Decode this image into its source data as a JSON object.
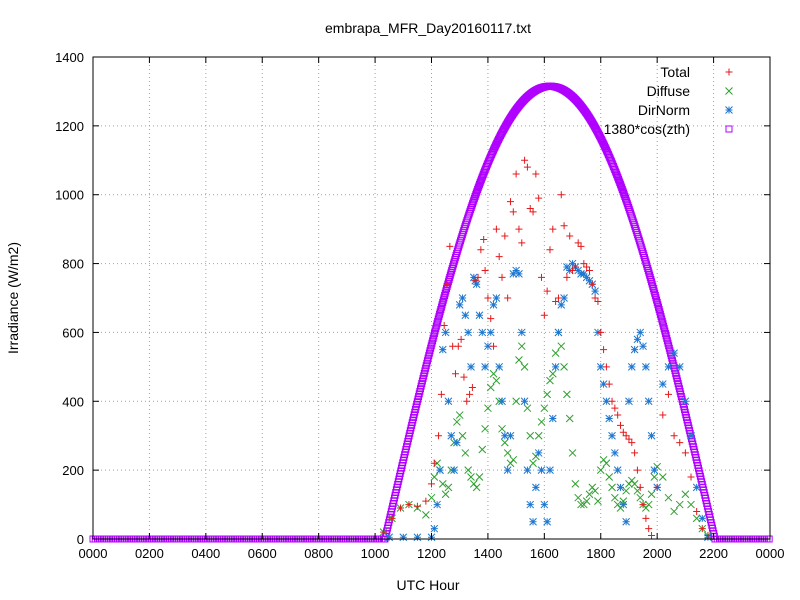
{
  "chart_data": {
    "type": "scatter",
    "title": "embrapa_MFR_Day20160117.txt",
    "xlabel": "UTC Hour",
    "ylabel": "Irradiance (W/m2)",
    "xlim": [
      0,
      24
    ],
    "ylim": [
      0,
      1400
    ],
    "x_ticks": [
      {
        "value": 0,
        "label": "0000"
      },
      {
        "value": 2,
        "label": "0200"
      },
      {
        "value": 4,
        "label": "0400"
      },
      {
        "value": 6,
        "label": "0600"
      },
      {
        "value": 8,
        "label": "0800"
      },
      {
        "value": 10,
        "label": "1000"
      },
      {
        "value": 12,
        "label": "1200"
      },
      {
        "value": 14,
        "label": "1400"
      },
      {
        "value": 16,
        "label": "1600"
      },
      {
        "value": 18,
        "label": "1800"
      },
      {
        "value": 20,
        "label": "2000"
      },
      {
        "value": 22,
        "label": "2200"
      },
      {
        "value": 24,
        "label": "0000"
      }
    ],
    "y_ticks": [
      0,
      200,
      400,
      600,
      800,
      1000,
      1200,
      1400
    ],
    "grid": true,
    "legend_position": "top-right",
    "series": [
      {
        "name": "Total",
        "marker": "plus",
        "color": "#e41a1c",
        "points": [
          [
            10.3,
            20
          ],
          [
            10.6,
            60
          ],
          [
            10.9,
            90
          ],
          [
            11.2,
            100
          ],
          [
            11.5,
            95
          ],
          [
            11.8,
            110
          ],
          [
            12.0,
            160
          ],
          [
            12.1,
            220
          ],
          [
            12.25,
            300
          ],
          [
            12.35,
            420
          ],
          [
            12.45,
            620
          ],
          [
            12.55,
            740
          ],
          [
            12.65,
            850
          ],
          [
            12.75,
            560
          ],
          [
            12.85,
            480
          ],
          [
            12.95,
            560
          ],
          [
            13.05,
            580
          ],
          [
            13.15,
            470
          ],
          [
            13.25,
            400
          ],
          [
            13.35,
            420
          ],
          [
            13.45,
            440
          ],
          [
            13.55,
            750
          ],
          [
            13.65,
            760
          ],
          [
            13.75,
            840
          ],
          [
            13.85,
            870
          ],
          [
            13.9,
            780
          ],
          [
            14.0,
            700
          ],
          [
            14.1,
            640
          ],
          [
            14.2,
            560
          ],
          [
            14.3,
            900
          ],
          [
            14.4,
            820
          ],
          [
            14.5,
            760
          ],
          [
            14.6,
            880
          ],
          [
            14.7,
            700
          ],
          [
            14.8,
            980
          ],
          [
            14.9,
            950
          ],
          [
            15.0,
            1060
          ],
          [
            15.1,
            900
          ],
          [
            15.2,
            860
          ],
          [
            15.3,
            1100
          ],
          [
            15.4,
            1080
          ],
          [
            15.5,
            960
          ],
          [
            15.6,
            950
          ],
          [
            15.7,
            1060
          ],
          [
            15.8,
            990
          ],
          [
            15.9,
            760
          ],
          [
            16.0,
            650
          ],
          [
            16.1,
            720
          ],
          [
            16.2,
            840
          ],
          [
            16.3,
            900
          ],
          [
            16.4,
            690
          ],
          [
            16.5,
            700
          ],
          [
            16.6,
            1000
          ],
          [
            16.7,
            910
          ],
          [
            16.8,
            760
          ],
          [
            16.9,
            880
          ],
          [
            17.0,
            780
          ],
          [
            17.1,
            790
          ],
          [
            17.2,
            860
          ],
          [
            17.3,
            850
          ],
          [
            17.4,
            800
          ],
          [
            17.5,
            790
          ],
          [
            17.6,
            780
          ],
          [
            17.7,
            740
          ],
          [
            17.8,
            700
          ],
          [
            17.9,
            690
          ],
          [
            18.0,
            600
          ],
          [
            18.1,
            550
          ],
          [
            18.2,
            500
          ],
          [
            18.3,
            450
          ],
          [
            18.4,
            400
          ],
          [
            18.5,
            380
          ],
          [
            18.6,
            360
          ],
          [
            18.7,
            330
          ],
          [
            18.8,
            310
          ],
          [
            18.9,
            300
          ],
          [
            19.0,
            290
          ],
          [
            19.1,
            280
          ],
          [
            19.2,
            250
          ],
          [
            19.3,
            200
          ],
          [
            19.4,
            150
          ],
          [
            19.5,
            100
          ],
          [
            19.6,
            60
          ],
          [
            19.7,
            30
          ],
          [
            19.8,
            10
          ],
          [
            20.0,
            150
          ],
          [
            20.2,
            360
          ],
          [
            20.4,
            420
          ],
          [
            20.6,
            300
          ],
          [
            20.8,
            280
          ],
          [
            21.0,
            250
          ],
          [
            21.2,
            180
          ],
          [
            21.4,
            80
          ],
          [
            21.6,
            30
          ],
          [
            21.8,
            10
          ]
        ]
      },
      {
        "name": "Diffuse",
        "marker": "cross",
        "color": "#2ca02c",
        "points": [
          [
            10.3,
            20
          ],
          [
            10.6,
            60
          ],
          [
            10.9,
            90
          ],
          [
            11.2,
            100
          ],
          [
            11.5,
            90
          ],
          [
            11.8,
            70
          ],
          [
            12.0,
            120
          ],
          [
            12.1,
            180
          ],
          [
            12.2,
            220
          ],
          [
            12.3,
            200
          ],
          [
            12.4,
            160
          ],
          [
            12.5,
            130
          ],
          [
            12.6,
            150
          ],
          [
            12.7,
            200
          ],
          [
            12.8,
            280
          ],
          [
            12.9,
            340
          ],
          [
            13.0,
            360
          ],
          [
            13.1,
            300
          ],
          [
            13.2,
            250
          ],
          [
            13.3,
            200
          ],
          [
            13.4,
            180
          ],
          [
            13.5,
            160
          ],
          [
            13.6,
            150
          ],
          [
            13.7,
            180
          ],
          [
            13.8,
            260
          ],
          [
            13.9,
            320
          ],
          [
            14.0,
            380
          ],
          [
            14.1,
            440
          ],
          [
            14.2,
            480
          ],
          [
            14.3,
            460
          ],
          [
            14.4,
            400
          ],
          [
            14.5,
            320
          ],
          [
            14.6,
            280
          ],
          [
            14.7,
            250
          ],
          [
            14.8,
            220
          ],
          [
            14.9,
            230
          ],
          [
            15.0,
            400
          ],
          [
            15.1,
            520
          ],
          [
            15.2,
            560
          ],
          [
            15.3,
            500
          ],
          [
            15.4,
            380
          ],
          [
            15.5,
            300
          ],
          [
            15.6,
            220
          ],
          [
            15.7,
            240
          ],
          [
            15.8,
            300
          ],
          [
            15.9,
            340
          ],
          [
            16.0,
            380
          ],
          [
            16.1,
            420
          ],
          [
            16.2,
            460
          ],
          [
            16.3,
            480
          ],
          [
            16.4,
            540
          ],
          [
            16.5,
            600
          ],
          [
            16.6,
            560
          ],
          [
            16.7,
            500
          ],
          [
            16.8,
            420
          ],
          [
            16.9,
            350
          ],
          [
            17.0,
            250
          ],
          [
            17.1,
            160
          ],
          [
            17.2,
            120
          ],
          [
            17.3,
            100
          ],
          [
            17.4,
            100
          ],
          [
            17.5,
            110
          ],
          [
            17.6,
            130
          ],
          [
            17.7,
            150
          ],
          [
            17.8,
            140
          ],
          [
            17.9,
            110
          ],
          [
            18.0,
            200
          ],
          [
            18.1,
            230
          ],
          [
            18.2,
            220
          ],
          [
            18.3,
            180
          ],
          [
            18.4,
            150
          ],
          [
            18.5,
            120
          ],
          [
            18.6,
            100
          ],
          [
            18.7,
            90
          ],
          [
            18.8,
            110
          ],
          [
            18.9,
            140
          ],
          [
            19.0,
            160
          ],
          [
            19.1,
            170
          ],
          [
            19.2,
            160
          ],
          [
            19.3,
            140
          ],
          [
            19.4,
            120
          ],
          [
            19.5,
            100
          ],
          [
            19.6,
            90
          ],
          [
            19.7,
            100
          ],
          [
            19.8,
            130
          ],
          [
            19.9,
            180
          ],
          [
            20.0,
            210
          ],
          [
            20.2,
            180
          ],
          [
            20.4,
            120
          ],
          [
            20.6,
            80
          ],
          [
            20.8,
            100
          ],
          [
            21.0,
            130
          ],
          [
            21.2,
            100
          ],
          [
            21.4,
            60
          ],
          [
            21.6,
            30
          ],
          [
            21.8,
            10
          ]
        ]
      },
      {
        "name": "DirNorm",
        "marker": "star",
        "color": "#1f77d0",
        "points": [
          [
            10.5,
            5
          ],
          [
            11.0,
            5
          ],
          [
            11.5,
            5
          ],
          [
            12.0,
            5
          ],
          [
            12.1,
            30
          ],
          [
            12.2,
            100
          ],
          [
            12.3,
            200
          ],
          [
            12.4,
            550
          ],
          [
            12.5,
            600
          ],
          [
            12.6,
            400
          ],
          [
            12.7,
            300
          ],
          [
            12.8,
            200
          ],
          [
            12.9,
            280
          ],
          [
            13.0,
            680
          ],
          [
            13.1,
            700
          ],
          [
            13.2,
            650
          ],
          [
            13.3,
            600
          ],
          [
            13.4,
            500
          ],
          [
            13.5,
            760
          ],
          [
            13.55,
            750
          ],
          [
            13.6,
            740
          ],
          [
            13.7,
            650
          ],
          [
            13.8,
            600
          ],
          [
            13.9,
            500
          ],
          [
            14.0,
            560
          ],
          [
            14.1,
            600
          ],
          [
            14.2,
            680
          ],
          [
            14.3,
            700
          ],
          [
            14.4,
            500
          ],
          [
            14.5,
            400
          ],
          [
            14.6,
            300
          ],
          [
            14.7,
            200
          ],
          [
            14.8,
            300
          ],
          [
            14.9,
            770
          ],
          [
            15.0,
            780
          ],
          [
            15.1,
            770
          ],
          [
            15.2,
            600
          ],
          [
            15.3,
            400
          ],
          [
            15.4,
            200
          ],
          [
            15.5,
            100
          ],
          [
            15.6,
            50
          ],
          [
            15.7,
            150
          ],
          [
            15.8,
            250
          ],
          [
            15.9,
            200
          ],
          [
            16.0,
            100
          ],
          [
            16.1,
            50
          ],
          [
            16.2,
            200
          ],
          [
            16.3,
            350
          ],
          [
            16.4,
            500
          ],
          [
            16.5,
            600
          ],
          [
            16.6,
            680
          ],
          [
            16.7,
            700
          ],
          [
            16.8,
            790
          ],
          [
            16.9,
            780
          ],
          [
            17.0,
            800
          ],
          [
            17.1,
            790
          ],
          [
            17.2,
            780
          ],
          [
            17.3,
            770
          ],
          [
            17.4,
            770
          ],
          [
            17.5,
            760
          ],
          [
            17.6,
            750
          ],
          [
            17.7,
            740
          ],
          [
            17.8,
            720
          ],
          [
            17.9,
            600
          ],
          [
            18.0,
            500
          ],
          [
            18.1,
            450
          ],
          [
            18.2,
            400
          ],
          [
            18.3,
            350
          ],
          [
            18.4,
            300
          ],
          [
            18.5,
            250
          ],
          [
            18.6,
            200
          ],
          [
            18.7,
            150
          ],
          [
            18.8,
            100
          ],
          [
            18.9,
            50
          ],
          [
            19.0,
            400
          ],
          [
            19.1,
            500
          ],
          [
            19.2,
            550
          ],
          [
            19.3,
            580
          ],
          [
            19.4,
            600
          ],
          [
            19.5,
            560
          ],
          [
            19.6,
            500
          ],
          [
            19.7,
            400
          ],
          [
            19.8,
            300
          ],
          [
            19.9,
            200
          ],
          [
            20.0,
            150
          ],
          [
            20.2,
            450
          ],
          [
            20.4,
            500
          ],
          [
            20.6,
            540
          ],
          [
            20.8,
            500
          ],
          [
            21.0,
            400
          ],
          [
            21.2,
            300
          ],
          [
            21.4,
            150
          ],
          [
            21.6,
            60
          ],
          [
            21.8,
            5
          ]
        ]
      },
      {
        "name": "1380*cos(zth)",
        "marker": "square",
        "color": "#b000ff",
        "curve": {
          "peak_x": 16.2,
          "peak_y": 1315,
          "half_width": 5.85,
          "samples": 520
        }
      }
    ]
  }
}
